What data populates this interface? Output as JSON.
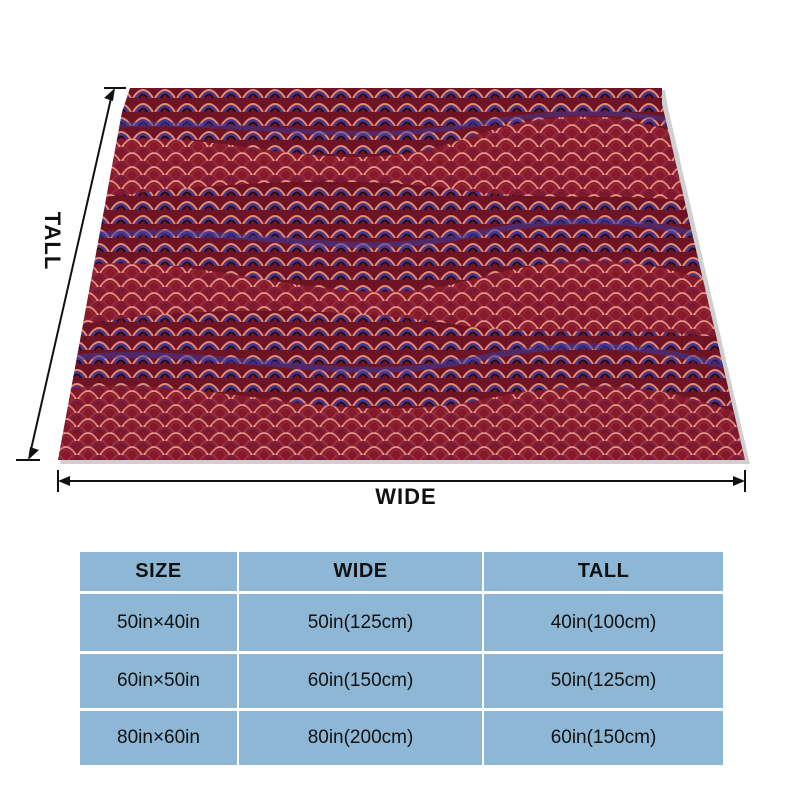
{
  "product": {
    "image_name": "marbled-fleece-blanket",
    "colors": {
      "primary": "#7a1a2a",
      "accent_blue": "#3a3aa0",
      "accent_salmon": "#e08a78",
      "table_bg": "#8db7d4"
    }
  },
  "dimensions": {
    "wide_label": "WIDE",
    "tall_label": "TALL"
  },
  "size_table": {
    "headers": [
      "SIZE",
      "WIDE",
      "TALL"
    ],
    "rows": [
      {
        "size": "50in×40in",
        "wide": "50in(125cm)",
        "tall": "40in(100cm)"
      },
      {
        "size": "60in×50in",
        "wide": "60in(150cm)",
        "tall": "50in(125cm)"
      },
      {
        "size": "80in×60in",
        "wide": "80in(200cm)",
        "tall": "60in(150cm)"
      }
    ]
  }
}
